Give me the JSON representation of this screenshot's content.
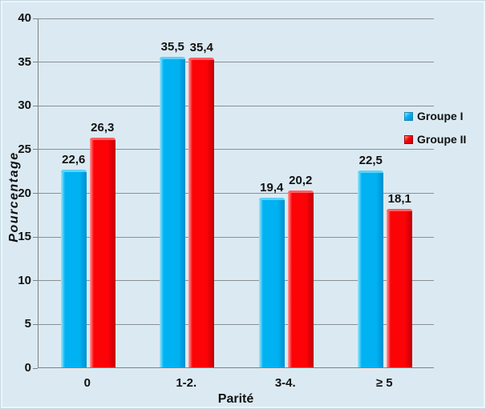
{
  "chart_data": {
    "type": "bar",
    "title": "",
    "categories": [
      "0",
      "1-2.",
      "3-4.",
      "≥ 5"
    ],
    "series": [
      {
        "name": "Groupe I",
        "values": [
          22.6,
          35.5,
          19.4,
          22.5
        ],
        "labels": [
          "22,6",
          "35,5",
          "19,4",
          "22,5"
        ]
      },
      {
        "name": "Groupe II",
        "values": [
          26.3,
          35.4,
          20.2,
          18.1
        ],
        "labels": [
          "26,3",
          "35,4",
          "20,2",
          "18,1"
        ]
      }
    ],
    "xlabel": "Parité",
    "ylabel": "Pourcentage",
    "ylim": [
      0,
      40
    ],
    "ytick_step": 5,
    "yticks": [
      "0",
      "5",
      "10",
      "15",
      "20",
      "25",
      "30",
      "35",
      "40"
    ],
    "grid": true,
    "legend_position": "right"
  },
  "colors": {
    "background": "#dbeaf2",
    "gridline": "#8a9094",
    "axis": "#7d8387",
    "text": "#111111",
    "series": [
      {
        "light": "#9fe8fb",
        "main": "#00b2f2",
        "dark": "#008fd0",
        "bevel": "#5cd2f8",
        "border": "#1b86b4"
      },
      {
        "light": "#ff9d9d",
        "main": "#fb0307",
        "dark": "#bf0006",
        "bevel": "#ff5f5f",
        "border": "#a00004"
      }
    ]
  }
}
